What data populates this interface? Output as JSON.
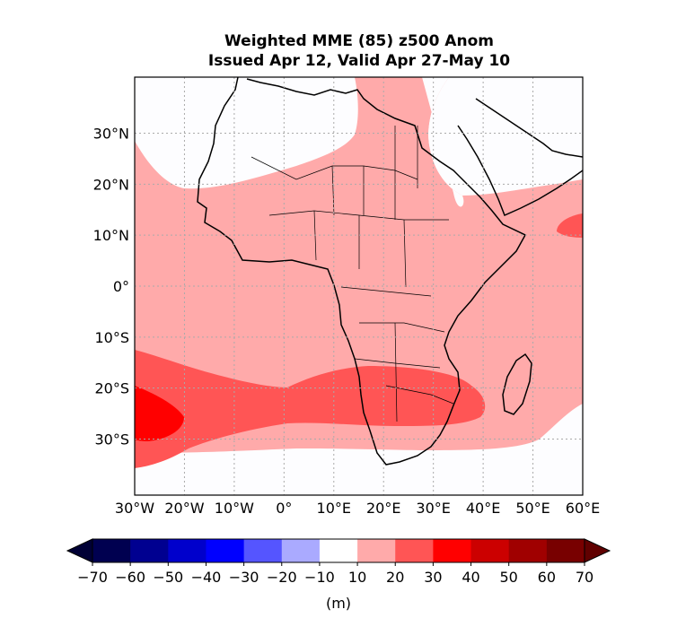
{
  "title": {
    "line1": "Weighted MME (85) z500 Anom",
    "line2": "Issued Apr 12, Valid Apr 27-May 10"
  },
  "map": {
    "lon_range": [
      -30,
      60
    ],
    "lat_range": [
      -41,
      41
    ],
    "lat_ticks": [
      {
        "value": 30,
        "label": "30°N"
      },
      {
        "value": 20,
        "label": "20°N"
      },
      {
        "value": 10,
        "label": "10°N"
      },
      {
        "value": 0,
        "label": "0°"
      },
      {
        "value": -10,
        "label": "10°S"
      },
      {
        "value": -20,
        "label": "20°S"
      },
      {
        "value": -30,
        "label": "30°S"
      }
    ],
    "lon_ticks": [
      {
        "value": -30,
        "label": "30°W"
      },
      {
        "value": -20,
        "label": "20°W"
      },
      {
        "value": -10,
        "label": "10°W"
      },
      {
        "value": 0,
        "label": "0°"
      },
      {
        "value": 10,
        "label": "10°E"
      },
      {
        "value": 20,
        "label": "20°E"
      },
      {
        "value": 30,
        "label": "30°E"
      },
      {
        "value": 40,
        "label": "40°E"
      },
      {
        "value": 50,
        "label": "50°E"
      },
      {
        "value": 60,
        "label": "60°E"
      }
    ],
    "gridlines": true
  },
  "colorbar": {
    "levels": [
      -70,
      -60,
      -50,
      -40,
      -30,
      -20,
      -10,
      10,
      20,
      30,
      40,
      50,
      60,
      70
    ],
    "tick_labels": [
      "−70",
      "−60",
      "−50",
      "−40",
      "−30",
      "−20",
      "−10",
      "10",
      "20",
      "30",
      "40",
      "50",
      "60",
      "70"
    ],
    "colors": [
      "#000050",
      "#000090",
      "#0000cc",
      "#0000ff",
      "#5555ff",
      "#aaaaff",
      "#ffffff",
      "#ffaaaa",
      "#ff5555",
      "#ff0000",
      "#cc0000",
      "#a00000",
      "#780000"
    ],
    "extend_min_color": "#000035",
    "extend_max_color": "#600000",
    "unit_label": "(m)"
  },
  "colors": {
    "anom_10_20": "#ffaaaa",
    "anom_20_30": "#ff5555",
    "anom_30_40": "#ff0000",
    "background": "#fdfdff"
  }
}
